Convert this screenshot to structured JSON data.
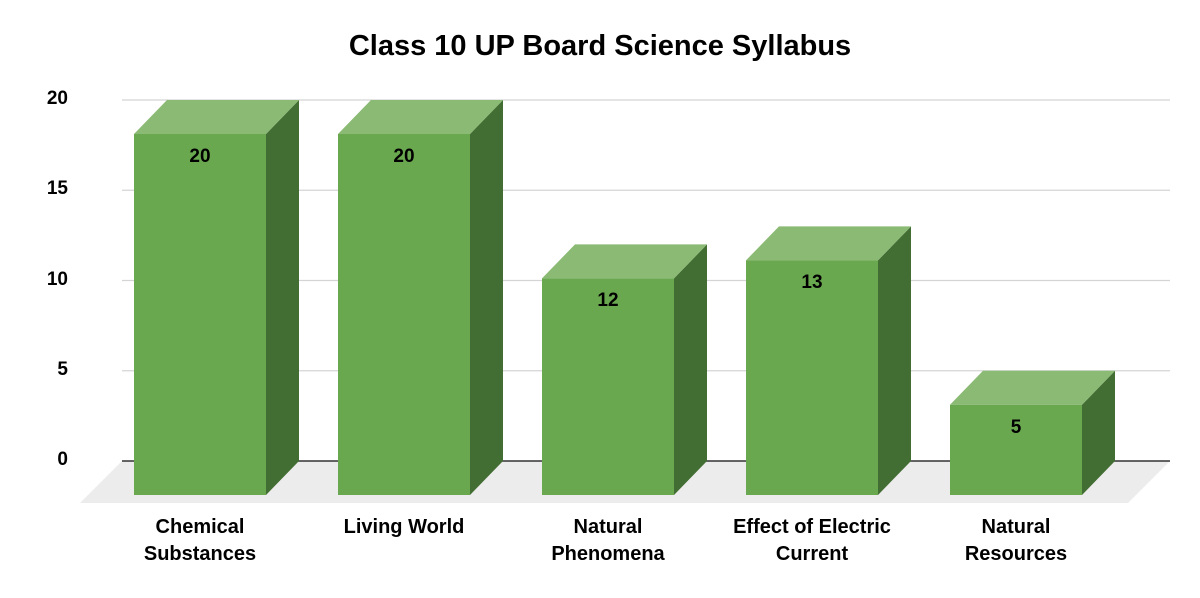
{
  "chart_data": {
    "type": "bar",
    "style": "3d-column",
    "title": "Class 10 UP Board Science Syllabus",
    "xlabel": "",
    "ylabel": "",
    "categories": [
      "Chemical\nSubstances",
      "Living World",
      "Natural\nPhenomena",
      "Effect of Electric\nCurrent",
      "Natural\nResources"
    ],
    "values": [
      20,
      20,
      12,
      13,
      5
    ],
    "data_labels": [
      "20",
      "20",
      "12",
      "13",
      "5"
    ],
    "yticks": [
      0,
      5,
      10,
      15,
      20
    ],
    "ylim": [
      0,
      20
    ],
    "grid": true,
    "legend": "none"
  },
  "colors": {
    "bar_front": "#6aa84f",
    "bar_top": "#8aba73",
    "bar_side": "#436e33",
    "floor": "#ececec",
    "gridline": "#d4d4d4",
    "baseline": "#333333"
  }
}
